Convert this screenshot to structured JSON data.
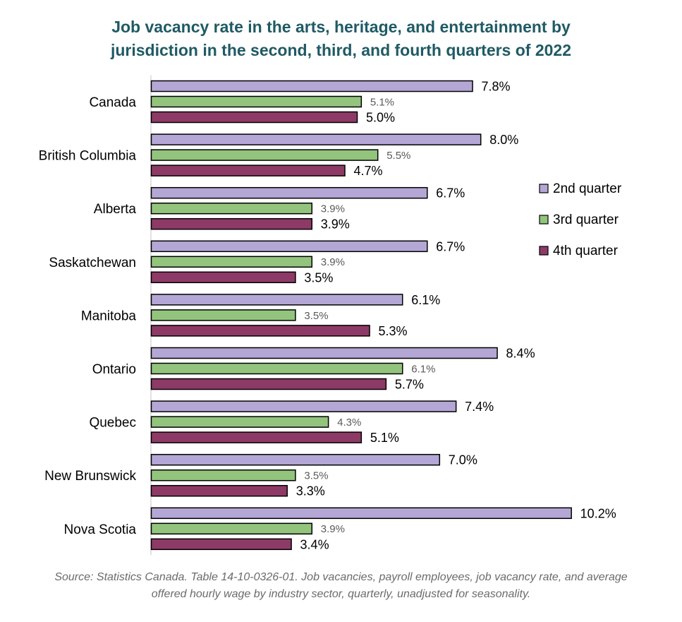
{
  "title_lines": [
    "Job vacancy rate in the arts, heritage, and entertainment by",
    "jurisdiction in the second, third, and fourth quarters of 2022"
  ],
  "source_lines": [
    "Source: Statistics Canada. Table 14-10-0326-01. Job vacancies, payroll employees, job vacancy rate, and average",
    "offered hourly wage by industry sector, quarterly, unadjusted for seasonality."
  ],
  "colors": {
    "q2": "#b4a7d6",
    "q3": "#93c47d",
    "q4": "#8e3a66",
    "title": "#1f5a64",
    "axis": "#d9d9d9"
  },
  "chart_data": {
    "type": "bar",
    "orientation": "horizontal",
    "title": "Job vacancy rate in the arts, heritage, and entertainment by jurisdiction in the second, third, and fourth quarters of 2022",
    "categories": [
      "Canada",
      "British Columbia",
      "Alberta",
      "Saskatchewan",
      "Manitoba",
      "Ontario",
      "Quebec",
      "New Brunswick",
      "Nova Scotia"
    ],
    "series": [
      {
        "name": "2nd quarter",
        "values": [
          7.8,
          8.0,
          6.7,
          6.7,
          6.1,
          8.4,
          7.4,
          7.0,
          10.2
        ],
        "labels": [
          "7.8%",
          "8.0%",
          "6.7%",
          "6.7%",
          "6.1%",
          "8.4%",
          "7.4%",
          "7.0%",
          "10.2%"
        ]
      },
      {
        "name": "3rd quarter",
        "values": [
          5.1,
          5.5,
          3.9,
          3.9,
          3.5,
          6.1,
          4.3,
          3.5,
          3.9
        ],
        "labels": [
          "5.1%",
          "5.5%",
          "3.9%",
          "3.9%",
          "3.5%",
          "6.1%",
          "4.3%",
          "3.5%",
          "3.9%"
        ]
      },
      {
        "name": "4th quarter",
        "values": [
          5.0,
          4.7,
          3.9,
          3.5,
          5.3,
          5.7,
          5.1,
          3.3,
          3.4
        ],
        "labels": [
          "5.0%",
          "4.7%",
          "3.9%",
          "3.5%",
          "5.3%",
          "5.7%",
          "5.1%",
          "3.3%",
          "3.4%"
        ]
      }
    ],
    "xlim": [
      0,
      10.2
    ],
    "grid": false,
    "legend": "right"
  }
}
